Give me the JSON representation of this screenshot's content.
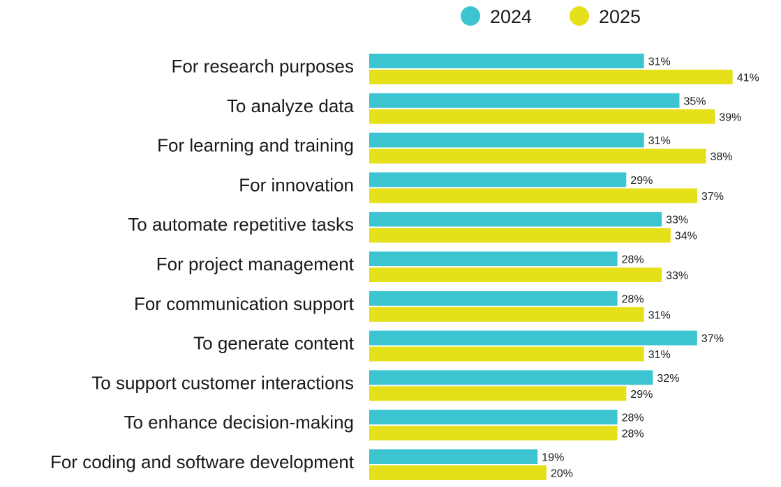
{
  "chart_data": {
    "type": "bar",
    "orientation": "horizontal",
    "title": "",
    "xlabel": "",
    "ylabel": "",
    "categories": [
      "For research purposes",
      "To analyze data",
      "For learning and training",
      "For innovation",
      "To automate repetitive tasks",
      "For project management",
      "For communication support",
      "To generate content",
      "To support customer interactions",
      "To enhance decision-making",
      "For coding and software development"
    ],
    "series": [
      {
        "name": "2024",
        "color": "#3cc4d0",
        "values": [
          31,
          35,
          31,
          29,
          33,
          28,
          28,
          37,
          32,
          28,
          19
        ]
      },
      {
        "name": "2025",
        "color": "#e5e01a",
        "values": [
          41,
          39,
          38,
          37,
          34,
          33,
          31,
          31,
          29,
          28,
          20
        ]
      }
    ],
    "value_suffix": "%",
    "xlim": [
      0,
      45
    ],
    "grid": false,
    "legend": "top"
  }
}
